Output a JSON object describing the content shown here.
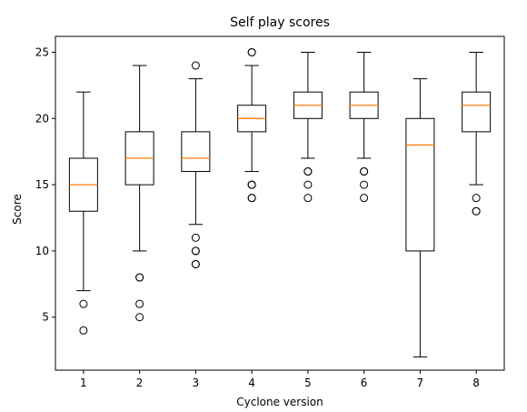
{
  "chart_data": {
    "type": "box",
    "title": "Self play scores",
    "xlabel": "Cyclone version",
    "ylabel": "Score",
    "ylim": [
      1,
      26.2
    ],
    "yticks": [
      5,
      10,
      15,
      20,
      25
    ],
    "categories": [
      "1",
      "2",
      "3",
      "4",
      "5",
      "6",
      "7",
      "8"
    ],
    "boxes": [
      {
        "category": "1",
        "whislo": 7,
        "q1": 13,
        "med": 15,
        "q3": 17,
        "whishi": 22,
        "fliers": [
          6,
          4
        ]
      },
      {
        "category": "2",
        "whislo": 10,
        "q1": 15,
        "med": 17,
        "q3": 19,
        "whishi": 24,
        "fliers": [
          8,
          8,
          6,
          5
        ]
      },
      {
        "category": "3",
        "whislo": 12,
        "q1": 16,
        "med": 17,
        "q3": 19,
        "whishi": 23,
        "fliers": [
          24,
          11,
          10,
          10,
          9,
          9
        ]
      },
      {
        "category": "4",
        "whislo": 16,
        "q1": 19,
        "med": 20,
        "q3": 21,
        "whishi": 24,
        "fliers": [
          25,
          25,
          15,
          15,
          15,
          14,
          14
        ]
      },
      {
        "category": "5",
        "whislo": 17,
        "q1": 20,
        "med": 21,
        "q3": 22,
        "whishi": 25,
        "fliers": [
          16,
          16,
          15,
          14
        ]
      },
      {
        "category": "6",
        "whislo": 17,
        "q1": 20,
        "med": 21,
        "q3": 22,
        "whishi": 25,
        "fliers": [
          16,
          16,
          15,
          14
        ]
      },
      {
        "category": "7",
        "whislo": 2,
        "q1": 10,
        "med": 18,
        "q3": 20,
        "whishi": 23,
        "fliers": []
      },
      {
        "category": "8",
        "whislo": 15,
        "q1": 19,
        "med": 21,
        "q3": 22,
        "whishi": 25,
        "fliers": [
          14,
          13,
          13
        ]
      }
    ],
    "colors": {
      "box": "#000000",
      "median": "#ff7f0e",
      "flier": "#000000"
    }
  }
}
